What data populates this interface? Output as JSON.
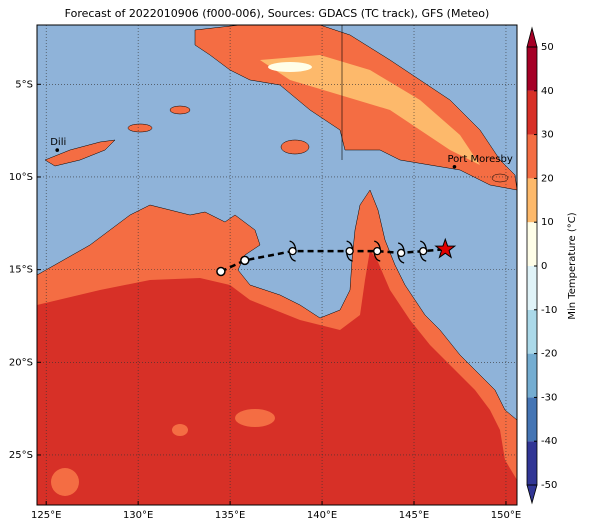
{
  "map": {
    "title": "Forecast of 2022010906 (f000-006), Sources: GDACS (TC track), GFS (Meteo)",
    "xlim": [
      124.5,
      150.6
    ],
    "ylim": [
      -27.7,
      -1.8
    ],
    "xticks": [
      {
        "value": 125,
        "label": "125°E"
      },
      {
        "value": 130,
        "label": "130°E"
      },
      {
        "value": 135,
        "label": "135°E"
      },
      {
        "value": 140,
        "label": "140°E"
      },
      {
        "value": 145,
        "label": "145°E"
      },
      {
        "value": 150,
        "label": "150°E"
      }
    ],
    "yticks": [
      {
        "value": -5,
        "label": "5°S"
      },
      {
        "value": -10,
        "label": "10°S"
      },
      {
        "value": -15,
        "label": "15°S"
      },
      {
        "value": -20,
        "label": "20°S"
      },
      {
        "value": -25,
        "label": "25°S"
      }
    ],
    "grid": true,
    "colorbar": {
      "label": "Min Temperature (°C)",
      "lim": [
        -50,
        50
      ],
      "ticks": [
        50,
        40,
        30,
        20,
        10,
        0,
        -10,
        -20,
        -30,
        -40,
        -50
      ],
      "colors": [
        "#313695",
        "#4575b4",
        "#74add1",
        "#abd9e9",
        "#e0f3f8",
        "#fffee8",
        "#fdb96b",
        "#f46d43",
        "#d73027",
        "#a50026"
      ]
    },
    "track": {
      "lon": [
        134.5,
        135.8,
        138.4,
        141.5,
        143.0,
        144.3,
        145.5,
        146.7
      ],
      "lat": [
        -15.1,
        -14.5,
        -14.0,
        -14.0,
        -14.0,
        -14.1,
        -14.0,
        -13.9
      ],
      "markers": [
        "circle",
        "circle",
        "storm",
        "storm",
        "storm",
        "storm",
        "storm",
        "star"
      ]
    },
    "cities": [
      {
        "name": "Dili",
        "lon": 125.6,
        "lat": -8.55
      },
      {
        "name": "Port Moresby",
        "lon": 147.2,
        "lat": -9.45
      }
    ]
  }
}
